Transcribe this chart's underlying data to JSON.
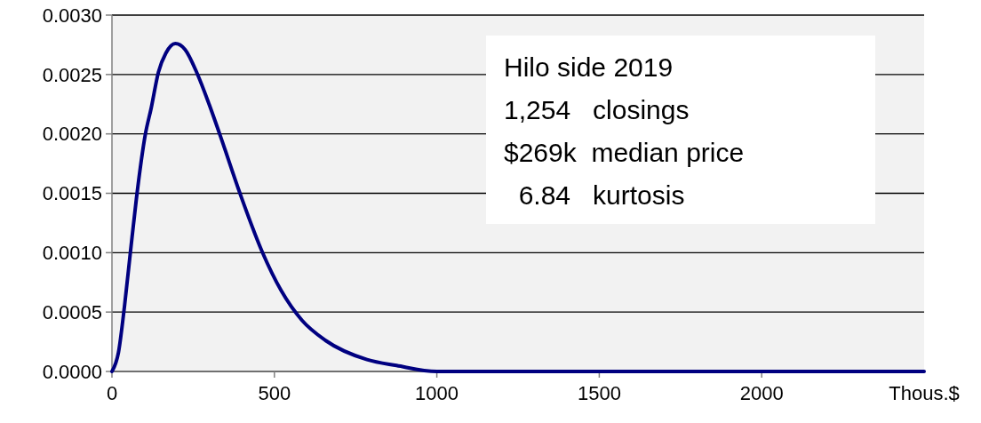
{
  "chart_data": {
    "type": "line",
    "x": [
      0,
      20,
      39,
      57,
      75,
      103,
      121,
      143,
      166,
      195,
      225,
      262,
      299,
      334,
      394,
      462,
      521,
      585,
      658,
      785,
      876,
      1000,
      1240,
      2500
    ],
    "series": [
      {
        "color": "#000080",
        "values": [
          0,
          0.00016,
          0.00056,
          0.00101,
          0.00145,
          0.002,
          0.00222,
          0.00252,
          0.00268,
          0.00276,
          0.00271,
          0.00251,
          0.00225,
          0.00198,
          0.0015,
          0.00101,
          0.00068,
          0.00043,
          0.00026,
          0.0001,
          5e-05,
          0,
          0,
          0
        ]
      }
    ],
    "xlim": [
      0,
      2500
    ],
    "xticks": [
      0,
      500,
      1000,
      1500,
      2000
    ],
    "xlabel": "Thous.$",
    "ylim": [
      0,
      0.003
    ],
    "yticks": [
      {
        "value": 0,
        "label": "0.0000"
      },
      {
        "value": 0.0005,
        "label": "0.0005"
      },
      {
        "value": 0.001,
        "label": "0.0010"
      },
      {
        "value": 0.0015,
        "label": "0.0015"
      },
      {
        "value": 0.002,
        "label": "0.0020"
      },
      {
        "value": 0.0025,
        "label": "0.0025"
      },
      {
        "value": 0.003,
        "label": "0.0030"
      }
    ],
    "grid": "y",
    "marker": "none",
    "line_style": "solid",
    "annotations": [
      "Hilo side 2019",
      "1,254   closings",
      "$269k  median price",
      "  6.84   kurtosis"
    ]
  }
}
